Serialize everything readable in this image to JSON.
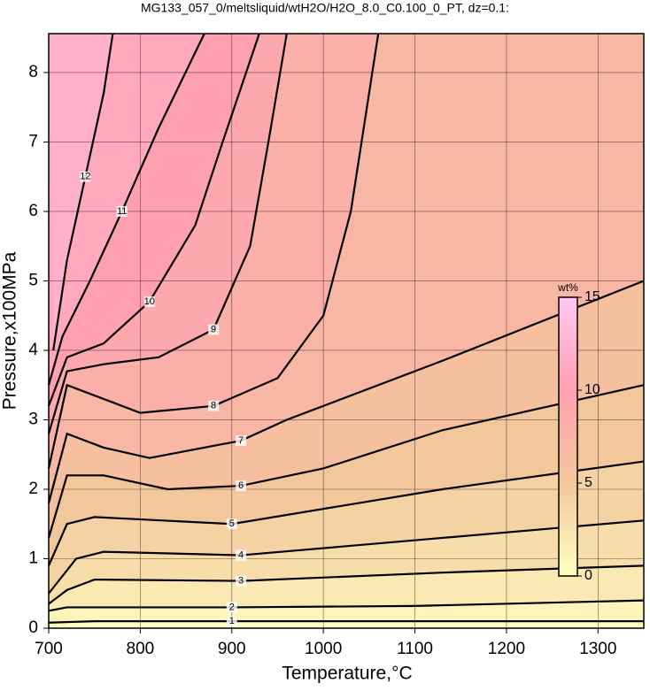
{
  "chart_data": {
    "type": "contour",
    "title": "MG133_057_0/meltsliquid/wtH2O/H2O_8.0_C0.100_0_PT, dz=0.1:",
    "xlabel": "Temperature,°C",
    "ylabel": "Pressure,x100MPa",
    "xlim": [
      700,
      1350
    ],
    "xticks": [
      700,
      800,
      900,
      1000,
      1100,
      1200,
      1300
    ],
    "ylim": [
      0,
      8.56
    ],
    "yticks": [
      0,
      1,
      2,
      3,
      4,
      5,
      6,
      7,
      8
    ],
    "grid": true,
    "contours": [
      {
        "level": 1,
        "x": [
          700,
          750,
          900,
          1350
        ],
        "y": [
          0.08,
          0.1,
          0.1,
          0.1
        ]
      },
      {
        "level": 2,
        "x": [
          700,
          720,
          750,
          900,
          1100,
          1350
        ],
        "y": [
          0.25,
          0.3,
          0.3,
          0.3,
          0.32,
          0.4
        ]
      },
      {
        "level": 3,
        "x": [
          700,
          720,
          750,
          910,
          1130,
          1350
        ],
        "y": [
          0.35,
          0.55,
          0.7,
          0.68,
          0.8,
          0.9
        ]
      },
      {
        "level": 4,
        "x": [
          700,
          730,
          760,
          910,
          1130,
          1350
        ],
        "y": [
          0.5,
          1.0,
          1.1,
          1.05,
          1.3,
          1.55
        ]
      },
      {
        "level": 5,
        "x": [
          700,
          720,
          750,
          900,
          1130,
          1350
        ],
        "y": [
          0.9,
          1.5,
          1.6,
          1.5,
          2.0,
          2.4
        ]
      },
      {
        "level": 6,
        "x": [
          700,
          720,
          760,
          830,
          910,
          1000,
          1130,
          1350
        ],
        "y": [
          1.3,
          2.2,
          2.2,
          2.0,
          2.05,
          2.3,
          2.85,
          3.5
        ]
      },
      {
        "level": 7,
        "x": [
          700,
          720,
          760,
          810,
          910,
          960,
          1130,
          1350
        ],
        "y": [
          1.8,
          2.8,
          2.6,
          2.45,
          2.7,
          3.0,
          3.85,
          5.0
        ]
      },
      {
        "level": 8,
        "x": [
          700,
          720,
          760,
          800,
          880,
          950,
          1000,
          1030,
          1060
        ],
        "y": [
          2.3,
          3.5,
          3.3,
          3.1,
          3.2,
          3.6,
          4.5,
          6.0,
          8.56
        ]
      },
      {
        "level": 9,
        "x": [
          700,
          720,
          760,
          820,
          880,
          920,
          940,
          960
        ],
        "y": [
          2.8,
          3.7,
          3.8,
          3.9,
          4.3,
          5.5,
          7.0,
          8.56
        ]
      },
      {
        "level": 10,
        "x": [
          700,
          720,
          760,
          810,
          860,
          890,
          930
        ],
        "y": [
          3.2,
          3.9,
          4.1,
          4.7,
          5.8,
          7.0,
          8.56
        ]
      },
      {
        "level": 11,
        "x": [
          700,
          715,
          745,
          780,
          820,
          870
        ],
        "y": [
          3.5,
          4.2,
          5.0,
          6.0,
          7.2,
          8.56
        ]
      },
      {
        "level": 12,
        "x": [
          705,
          720,
          740,
          760,
          770
        ],
        "y": [
          4.0,
          5.3,
          6.5,
          7.7,
          8.56
        ]
      }
    ],
    "colorbar_label": "wt%",
    "colorbar_lim": [
      0,
      15
    ],
    "colorbar_ticks": [
      0,
      5,
      10,
      15
    ],
    "colorbar_colors": [
      "#ffffc0",
      "#f2c79c",
      "#ffa0b0",
      "#ffc8f4"
    ]
  }
}
